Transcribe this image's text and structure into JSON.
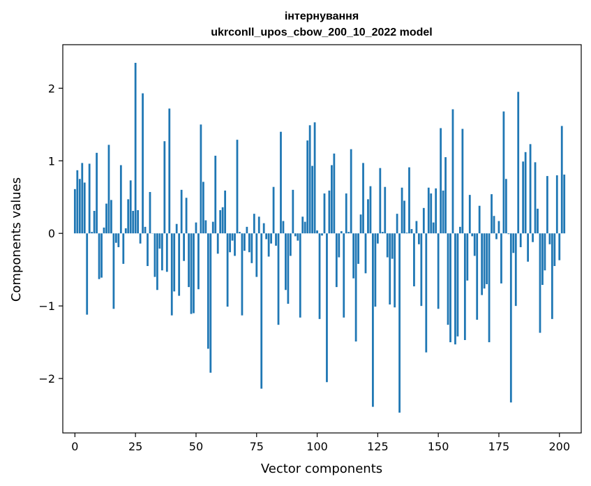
{
  "chart_data": {
    "type": "bar",
    "title_line1": "інтернування",
    "title_line2": "ukrconll_upos_cbow_200_10_2022 model",
    "xlabel": "Vector components",
    "ylabel": "Components values",
    "xlim": [
      -5,
      209
    ],
    "ylim": [
      -2.75,
      2.6
    ],
    "xticks": [
      0,
      25,
      50,
      75,
      100,
      125,
      150,
      175,
      200
    ],
    "yticks": [
      -2,
      -1,
      0,
      1,
      2
    ],
    "xtick_labels": [
      "0",
      "25",
      "50",
      "75",
      "100",
      "125",
      "150",
      "175",
      "200"
    ],
    "ytick_labels": [
      "−2",
      "−1",
      "0",
      "1",
      "2"
    ],
    "bar_color": "#1f77b4",
    "values": [
      0.61,
      0.87,
      0.75,
      0.97,
      0.7,
      -1.12,
      0.96,
      0.02,
      0.31,
      1.11,
      -0.63,
      -0.61,
      0.08,
      0.41,
      1.22,
      0.46,
      -1.04,
      -0.13,
      -0.19,
      0.94,
      -0.42,
      0.07,
      0.47,
      0.73,
      0.31,
      2.35,
      0.32,
      -0.14,
      1.93,
      0.09,
      -0.45,
      0.57,
      0.0,
      -0.6,
      -0.78,
      -0.21,
      -0.51,
      1.27,
      -0.53,
      1.72,
      -1.13,
      -0.8,
      0.13,
      -0.86,
      0.6,
      -0.38,
      0.49,
      -0.74,
      -1.11,
      -1.1,
      0.15,
      -0.77,
      1.5,
      0.71,
      0.18,
      -1.59,
      -1.92,
      0.16,
      1.07,
      -0.28,
      0.32,
      0.36,
      0.59,
      -1.01,
      -0.26,
      -0.1,
      -0.31,
      1.29,
      0.02,
      -1.13,
      -0.24,
      0.09,
      -0.26,
      -0.41,
      0.27,
      -0.6,
      0.23,
      -2.14,
      0.14,
      -0.08,
      -0.32,
      -0.14,
      0.64,
      -0.17,
      -1.26,
      1.4,
      0.17,
      -0.78,
      -0.97,
      -0.31,
      0.6,
      -0.04,
      -0.1,
      -1.16,
      0.23,
      0.16,
      1.28,
      1.49,
      0.93,
      1.53,
      0.04,
      -1.18,
      -0.03,
      0.55,
      -2.05,
      0.59,
      0.94,
      1.1,
      -0.74,
      -0.33,
      0.03,
      -1.16,
      0.55,
      0.02,
      1.16,
      -0.62,
      -1.49,
      -0.42,
      0.26,
      0.97,
      -0.55,
      0.47,
      0.65,
      -2.39,
      -1.01,
      -0.14,
      0.9,
      0.02,
      0.64,
      -0.33,
      -0.98,
      -0.35,
      -1.02,
      0.27,
      -2.47,
      0.63,
      0.45,
      0.01,
      0.91,
      0.06,
      -0.73,
      0.17,
      -0.15,
      -1.0,
      0.35,
      -1.64,
      0.63,
      0.55,
      0.15,
      0.62,
      -1.04,
      1.45,
      0.59,
      1.05,
      -1.26,
      -1.5,
      1.71,
      -1.53,
      -1.42,
      0.09,
      1.44,
      -1.47,
      -0.65,
      0.53,
      -0.04,
      -0.31,
      -1.19,
      0.38,
      -0.85,
      -0.76,
      -0.7,
      -1.5,
      0.54,
      0.24,
      -0.08,
      0.17,
      -0.69,
      1.68,
      0.75,
      -0.01,
      -2.33,
      -0.27,
      -1.0,
      1.95,
      -0.19,
      0.99,
      1.12,
      -0.39,
      1.23,
      -0.12,
      0.98,
      0.34,
      -1.37,
      -0.71,
      -0.51,
      0.79,
      -0.15,
      -1.18,
      -0.45,
      0.8,
      -0.37,
      1.48,
      0.81
    ]
  }
}
